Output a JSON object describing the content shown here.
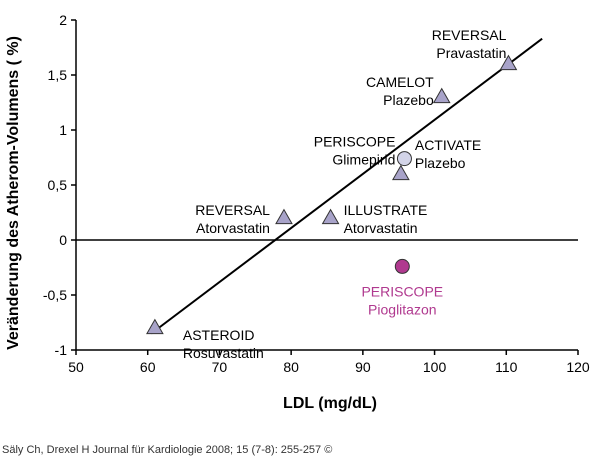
{
  "chart_data": {
    "type": "scatter",
    "xlabel": "LDL (mg/dL)",
    "ylabel": "Veränderung des Atherom-Volumens ( %)",
    "xlim": [
      50,
      120
    ],
    "ylim": [
      -1,
      2
    ],
    "x_ticks": [
      "50",
      "60",
      "70",
      "80",
      "90",
      "100",
      "110",
      "120"
    ],
    "y_ticks": [
      "2",
      "1,5",
      "1",
      "0,5",
      "0",
      "-0,5",
      "-1"
    ],
    "points": [
      {
        "x": 61,
        "y": -0.8,
        "marker": "triangle",
        "color": "#a8a3c9",
        "label": [
          "ASTEROID",
          "Rosuvastatin"
        ]
      },
      {
        "x": 79,
        "y": 0.2,
        "marker": "triangle",
        "color": "#a8a3c9",
        "label": [
          "REVERSAL",
          "Atorvastatin"
        ]
      },
      {
        "x": 85.5,
        "y": 0.2,
        "marker": "triangle",
        "color": "#a8a3c9",
        "label": [
          "ILLUSTRATE",
          "Atorvastatin"
        ]
      },
      {
        "x": 95.3,
        "y": 0.6,
        "marker": "triangle",
        "color": "#a8a3c9",
        "label": [
          "ACTIVATE",
          "Plazebo"
        ]
      },
      {
        "x": 95.8,
        "y": 0.74,
        "marker": "circle",
        "color": "#d3d4e8",
        "label": [
          "PERISCOPE",
          "Glimepirid"
        ]
      },
      {
        "x": 101,
        "y": 1.3,
        "marker": "triangle",
        "color": "#a8a3c9",
        "label": [
          "CAMELOT",
          "Plazebo"
        ]
      },
      {
        "x": 110.3,
        "y": 1.6,
        "marker": "triangle",
        "color": "#a8a3c9",
        "label": [
          "REVERSAL",
          "Pravastatin"
        ]
      },
      {
        "x": 95.5,
        "y": -0.24,
        "marker": "circle",
        "color": "#b0398f",
        "highlight": true,
        "label": [
          "PERISCOPE",
          "Pioglitazon"
        ]
      }
    ],
    "trend_line": {
      "x": [
        60.5,
        115
      ],
      "y": [
        -0.85,
        1.83
      ]
    },
    "reference_line_y": 0,
    "grid": false,
    "highlight_color": "#b0398f"
  },
  "caption": "Säly Ch, Drexel H Journal für Kardiologie 2008; 15 (7-8): 255-257 ©"
}
